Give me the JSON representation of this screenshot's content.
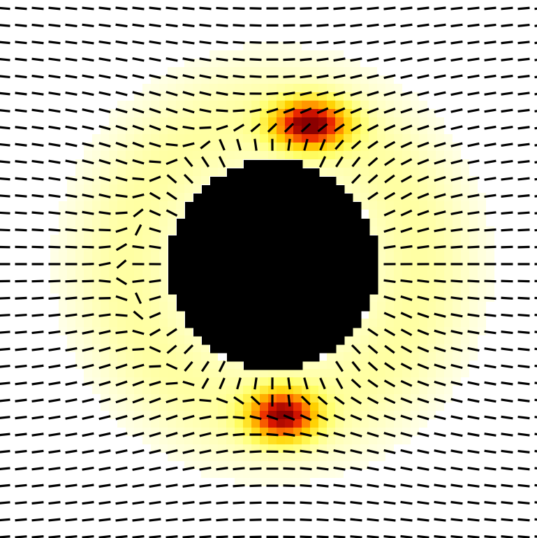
{
  "chart_data": {
    "type": "heatmap",
    "title": "",
    "xlabel": "",
    "ylabel": "",
    "description_elements": {
      "background_color": "#ffffff",
      "director_color": "#000000",
      "particle_color": "#000000",
      "defects": [
        {
          "name": "upper-defect"
        },
        {
          "name": "lower-defect"
        }
      ]
    },
    "colormap": [
      "#ffffff",
      "#ffff66",
      "#ffd000",
      "#ff7a00",
      "#e61a00",
      "#8b0000"
    ],
    "grid": {
      "cols": 32,
      "rows": 32
    }
  }
}
